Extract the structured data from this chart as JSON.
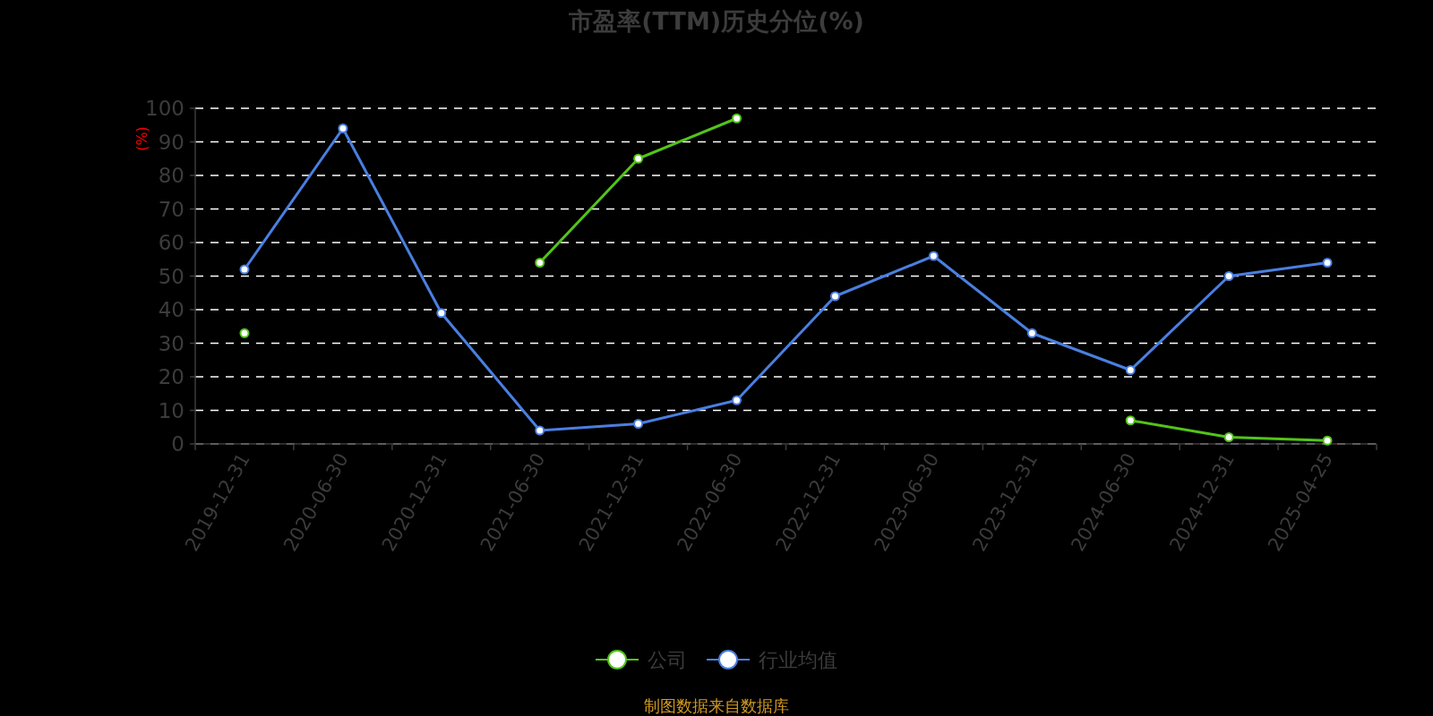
{
  "chart_data": {
    "type": "line",
    "title": "市盈率(TTM)历史分位(%)",
    "ylabel": "(%)",
    "categories": [
      "2019-12-31",
      "2020-06-30",
      "2020-12-31",
      "2021-06-30",
      "2021-12-31",
      "2022-06-30",
      "2022-12-31",
      "2023-06-30",
      "2023-12-31",
      "2024-06-30",
      "2024-12-31",
      "2025-04-25"
    ],
    "series": [
      {
        "name": "公司",
        "color": "#52c41a",
        "values": [
          33,
          null,
          null,
          54,
          85,
          97,
          null,
          null,
          null,
          7,
          2,
          1
        ]
      },
      {
        "name": "行业均值",
        "color": "#4a7fe0",
        "values": [
          52,
          94,
          39,
          4,
          6,
          13,
          44,
          56,
          33,
          22,
          50,
          54
        ]
      }
    ],
    "ylim": [
      0,
      100
    ],
    "yticks": [
      0,
      10,
      20,
      30,
      40,
      50,
      60,
      70,
      80,
      90,
      100
    ],
    "grid": "y",
    "legend": "bottom",
    "marker": "circle",
    "annotations": [
      "制图数据来自数据库"
    ]
  }
}
